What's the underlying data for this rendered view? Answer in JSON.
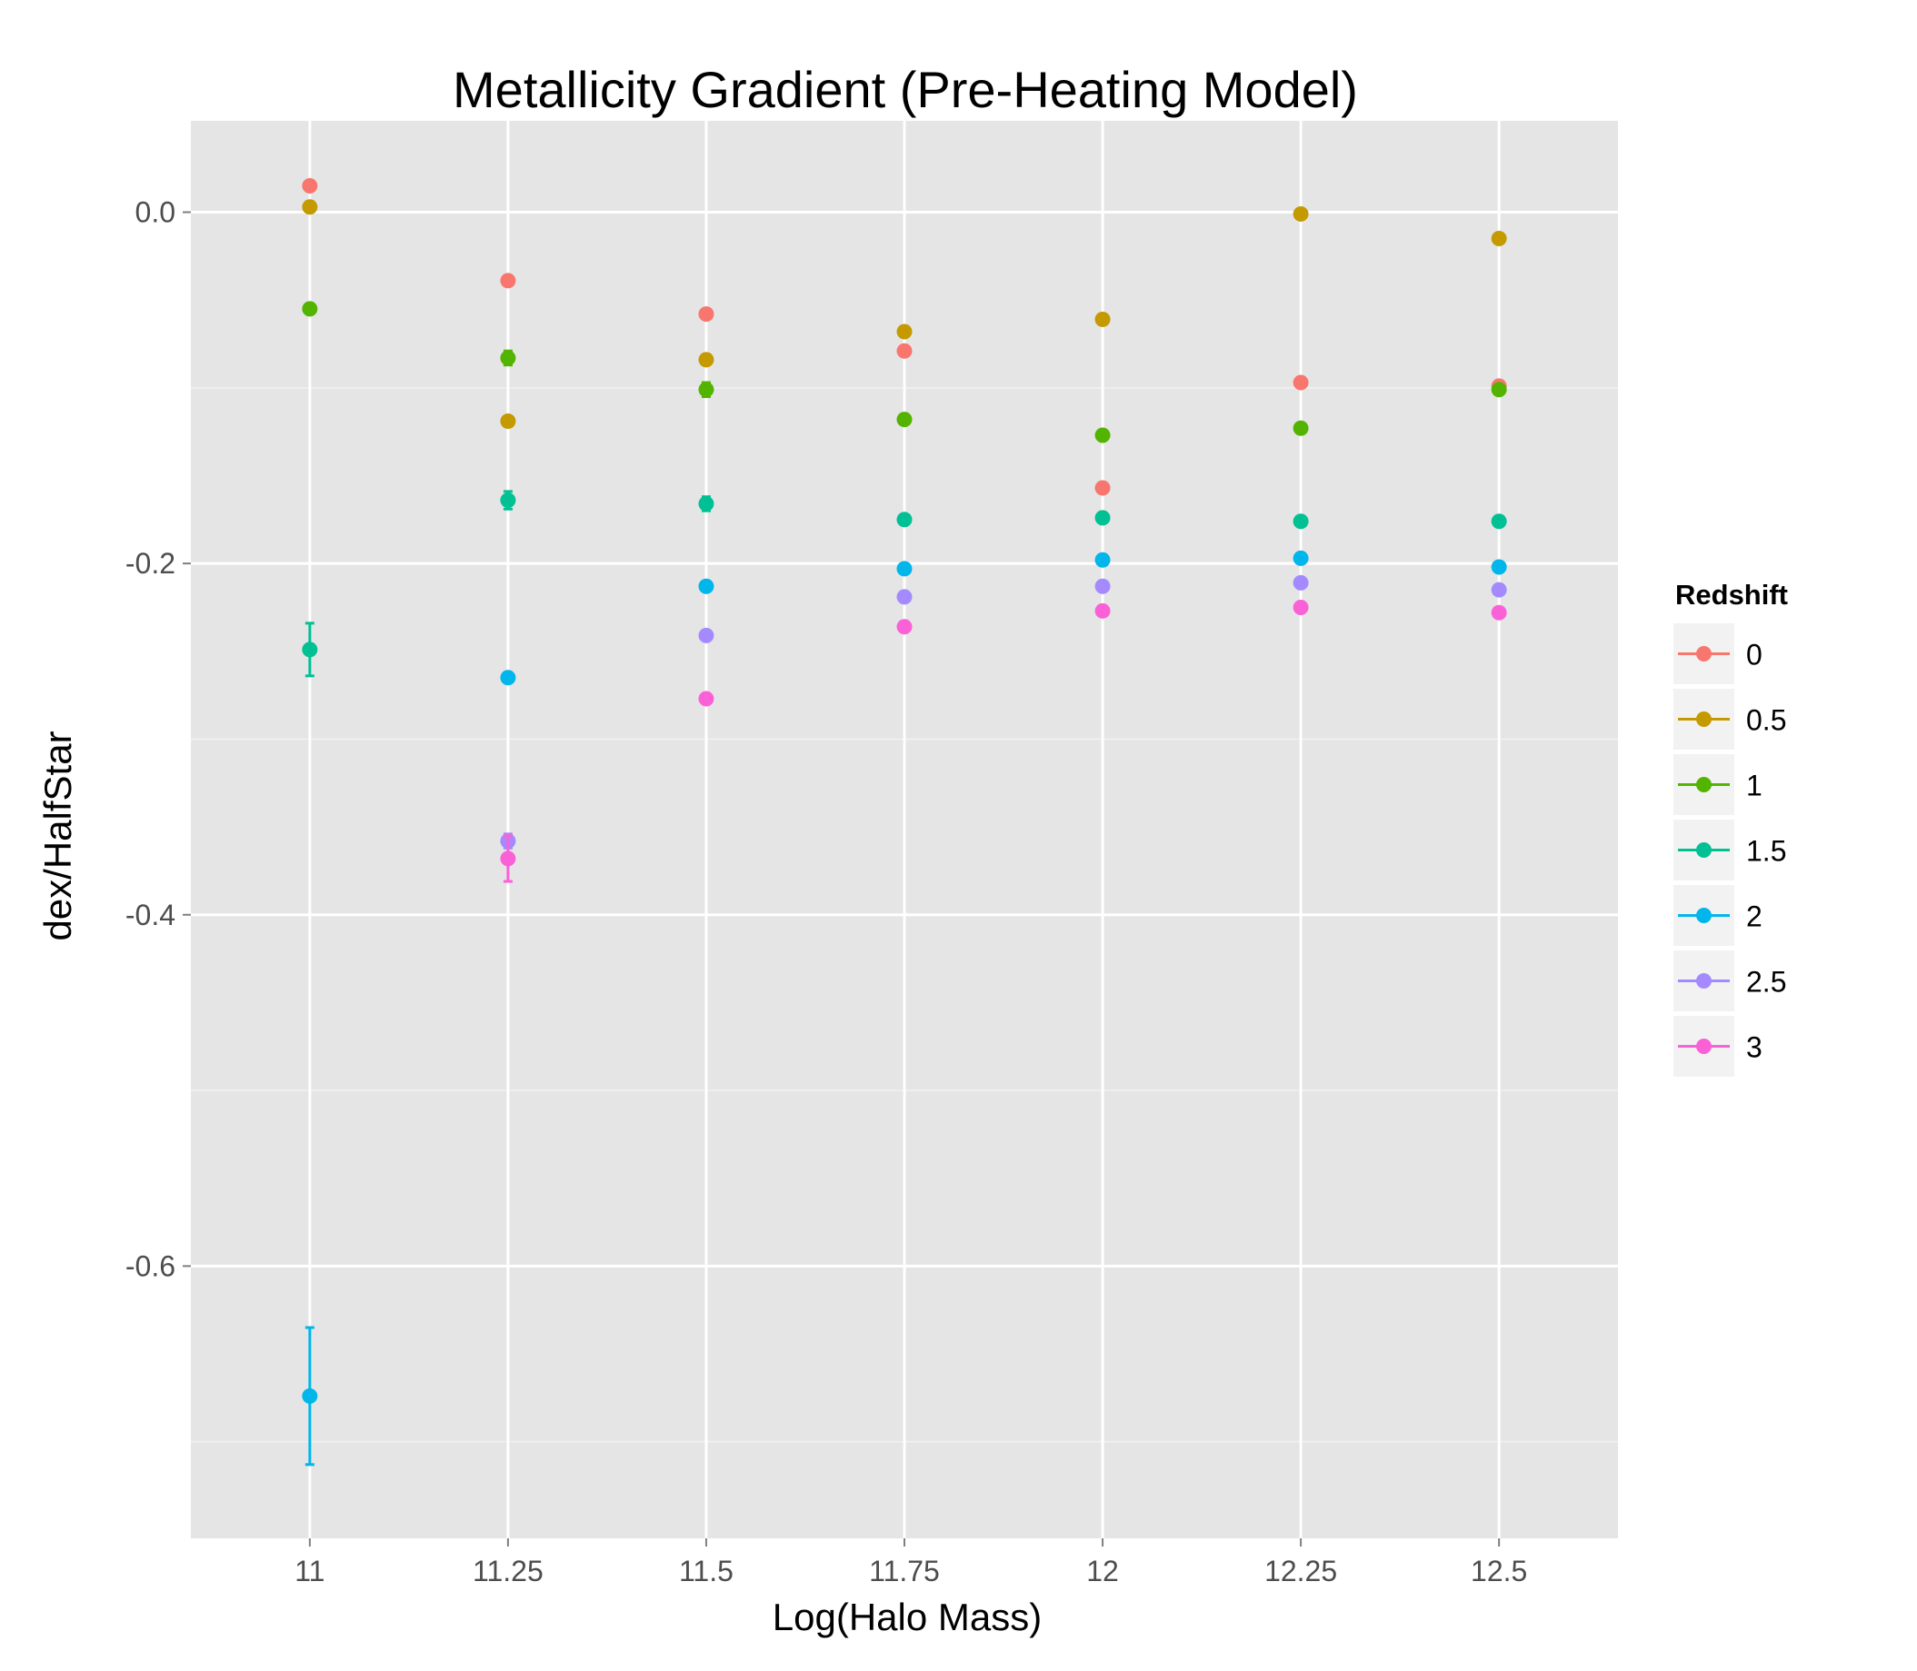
{
  "chart_data": {
    "type": "scatter",
    "title": "Metallicity Gradient (Pre-Heating Model)",
    "xlabel": "Log(Halo Mass)",
    "ylabel": "dex/HalfStar",
    "x_ticks": [
      "11",
      "11.25",
      "11.5",
      "11.75",
      "12",
      "12.25",
      "12.5"
    ],
    "y_ticks": [
      "0.0",
      "-0.2",
      "-0.4",
      "-0.6"
    ],
    "xlim": [
      10.85,
      12.65
    ],
    "ylim": [
      -0.755,
      0.052
    ],
    "grid": true,
    "legend": {
      "title": "Redshift",
      "position": "right"
    },
    "series": [
      {
        "name": "0",
        "color": "#F8766D",
        "points": [
          {
            "x": 11,
            "y": 0.015
          },
          {
            "x": 11.25,
            "y": -0.039
          },
          {
            "x": 11.5,
            "y": -0.058
          },
          {
            "x": 11.75,
            "y": -0.079
          },
          {
            "x": 12,
            "y": -0.157
          },
          {
            "x": 12.25,
            "y": -0.097
          },
          {
            "x": 12.5,
            "y": -0.099
          }
        ]
      },
      {
        "name": "0.5",
        "color": "#C49A00",
        "points": [
          {
            "x": 11,
            "y": 0.003
          },
          {
            "x": 11.25,
            "y": -0.119
          },
          {
            "x": 11.5,
            "y": -0.084
          },
          {
            "x": 11.75,
            "y": -0.068
          },
          {
            "x": 12,
            "y": -0.061
          },
          {
            "x": 12.25,
            "y": -0.001
          },
          {
            "x": 12.5,
            "y": -0.015
          }
        ]
      },
      {
        "name": "1",
        "color": "#53B400",
        "points": [
          {
            "x": 11,
            "y": -0.055
          },
          {
            "x": 11.25,
            "y": -0.083,
            "err": 0.004
          },
          {
            "x": 11.5,
            "y": -0.101,
            "err": 0.004
          },
          {
            "x": 11.75,
            "y": -0.118
          },
          {
            "x": 12,
            "y": -0.127
          },
          {
            "x": 12.25,
            "y": -0.123
          },
          {
            "x": 12.5,
            "y": -0.101
          }
        ]
      },
      {
        "name": "1.5",
        "color": "#00C094",
        "points": [
          {
            "x": 11,
            "y": -0.249,
            "err": 0.015
          },
          {
            "x": 11.25,
            "y": -0.164,
            "err": 0.005
          },
          {
            "x": 11.5,
            "y": -0.166,
            "err": 0.004
          },
          {
            "x": 11.75,
            "y": -0.175
          },
          {
            "x": 12,
            "y": -0.174
          },
          {
            "x": 12.25,
            "y": -0.176
          },
          {
            "x": 12.5,
            "y": -0.176
          }
        ]
      },
      {
        "name": "2",
        "color": "#00B6EB",
        "points": [
          {
            "x": 11,
            "y": -0.674,
            "err": 0.039
          },
          {
            "x": 11.25,
            "y": -0.265
          },
          {
            "x": 11.5,
            "y": -0.213
          },
          {
            "x": 11.75,
            "y": -0.203
          },
          {
            "x": 12,
            "y": -0.198
          },
          {
            "x": 12.25,
            "y": -0.197
          },
          {
            "x": 12.5,
            "y": -0.202
          }
        ]
      },
      {
        "name": "2.5",
        "color": "#A58AFF",
        "points": [
          {
            "x": 11.25,
            "y": -0.358,
            "err": 0.004
          },
          {
            "x": 11.5,
            "y": -0.241
          },
          {
            "x": 11.75,
            "y": -0.219
          },
          {
            "x": 12,
            "y": -0.213
          },
          {
            "x": 12.25,
            "y": -0.211
          },
          {
            "x": 12.5,
            "y": -0.215
          }
        ]
      },
      {
        "name": "3",
        "color": "#FB61D7",
        "points": [
          {
            "x": 11.25,
            "y": -0.368,
            "err": 0.013
          },
          {
            "x": 11.5,
            "y": -0.277
          },
          {
            "x": 11.75,
            "y": -0.236
          },
          {
            "x": 12,
            "y": -0.227
          },
          {
            "x": 12.25,
            "y": -0.225
          },
          {
            "x": 12.5,
            "y": -0.228
          }
        ]
      }
    ]
  }
}
